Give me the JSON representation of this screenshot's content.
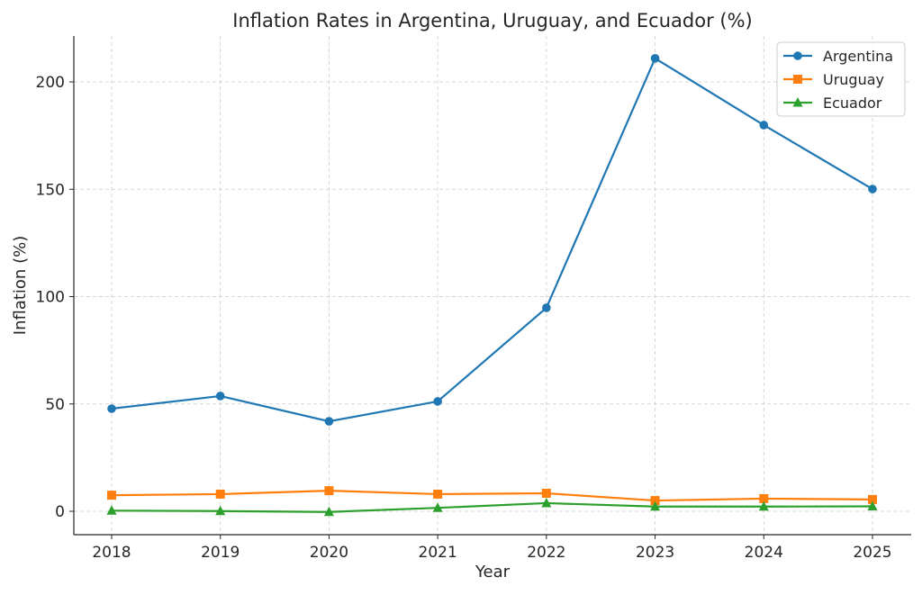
{
  "chart_data": {
    "type": "line",
    "title": "Inflation Rates in Argentina, Uruguay, and Ecuador (%)",
    "xlabel": "Year",
    "ylabel": "Inflation (%)",
    "x": [
      2018,
      2019,
      2020,
      2021,
      2022,
      2023,
      2024,
      2025
    ],
    "x_tick_labels": [
      "2018",
      "2019",
      "2020",
      "2021",
      "2022",
      "2023",
      "2024",
      "2025"
    ],
    "y_ticks": [
      0,
      50,
      100,
      150,
      200
    ],
    "y_tick_labels": [
      "0",
      "50",
      "100",
      "150",
      "200"
    ],
    "ylim": [
      -10.9,
      221.4
    ],
    "grid": true,
    "legend_position": "top-right",
    "series": [
      {
        "name": "Argentina",
        "color": "#1f77b4",
        "marker": "circle",
        "values": [
          47.8,
          53.7,
          41.9,
          51.2,
          94.8,
          211.0,
          179.9,
          150.1
        ]
      },
      {
        "name": "Uruguay",
        "color": "#ff7f0e",
        "marker": "square",
        "values": [
          7.5,
          8.0,
          9.6,
          8.0,
          8.4,
          5.0,
          5.9,
          5.5
        ]
      },
      {
        "name": "Ecuador",
        "color": "#2ca02c",
        "marker": "triangle",
        "values": [
          0.3,
          0.1,
          -0.3,
          1.6,
          3.8,
          2.2,
          2.2,
          2.3
        ]
      }
    ]
  }
}
